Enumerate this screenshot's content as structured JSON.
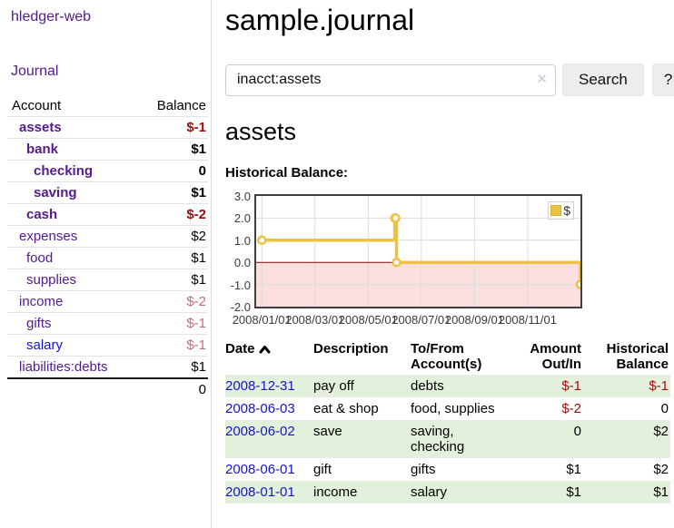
{
  "app": {
    "brand": "hledger-web"
  },
  "colors": {
    "link_purple": "#551a8b",
    "link_blue": "#1414d2",
    "negative_strong": "#9e0b0b",
    "negative_soft": "#c0706f",
    "row_stripe_green": "#e3f0dc",
    "series_gold": "#edc240",
    "zero_line_red": "#8b0000",
    "negative_region_pink": "#fbdede"
  },
  "sidebar": {
    "journal_link": "Journal",
    "table": {
      "account_header": "Account",
      "balance_header": "Balance",
      "rows": [
        {
          "account": "assets",
          "balance": "$-1",
          "depth": 1,
          "emph": true
        },
        {
          "account": "bank",
          "balance": "$1",
          "depth": 2,
          "emph": true
        },
        {
          "account": "checking",
          "balance": "0",
          "depth": 3,
          "emph": true
        },
        {
          "account": "saving",
          "balance": "$1",
          "depth": 3,
          "emph": true
        },
        {
          "account": "cash",
          "balance": "$-2",
          "depth": 2,
          "emph": true
        },
        {
          "account": "expenses",
          "balance": "$2",
          "depth": 1
        },
        {
          "account": "food",
          "balance": "$1",
          "depth": 2
        },
        {
          "account": "supplies",
          "balance": "$1",
          "depth": 2
        },
        {
          "account": "income",
          "balance": "$-2",
          "depth": 1
        },
        {
          "account": "gifts",
          "balance": "$-1",
          "depth": 2
        },
        {
          "account": "salary",
          "balance": "$-1",
          "depth": 2,
          "unvisited": true
        },
        {
          "account": "liabilities:debts",
          "balance": "$1",
          "depth": 1
        }
      ],
      "total": "0"
    }
  },
  "main": {
    "title": "sample.journal",
    "search": {
      "value": "inacct:assets",
      "clear_label": "✕",
      "button_label": "Search",
      "help_label": "?"
    },
    "account_heading": "assets",
    "chart_heading": "Historical Balance:"
  },
  "chart_data": {
    "type": "line",
    "title": "Historical Balance",
    "step": true,
    "series": [
      {
        "name": "$",
        "color": "#edc240",
        "points": [
          [
            "2008-01-01",
            1
          ],
          [
            "2008-06-01",
            2
          ],
          [
            "2008-06-02",
            2
          ],
          [
            "2008-06-03",
            0
          ],
          [
            "2008-12-31",
            -1
          ]
        ]
      }
    ],
    "xlim": [
      "2007-12-25",
      "2008-12-31"
    ],
    "ylim": [
      -2,
      3
    ],
    "x_ticks": [
      "2008/01/01",
      "2008/03/01",
      "2008/05/01",
      "2008/07/01",
      "2008/09/01",
      "2008/11/01"
    ],
    "y_ticks": [
      "3.0",
      "2.0",
      "1.0",
      "0.0",
      "-1.0",
      "-2.0"
    ],
    "grid": true,
    "legend": {
      "label": "$",
      "position": "top-right"
    },
    "zero_line": true,
    "negative_region_shaded": true
  },
  "register": {
    "headers": {
      "date": "Date",
      "description": "Description",
      "accounts": "To/From Account(s)",
      "amount": "Amount Out/In",
      "balance": "Historical Balance"
    },
    "sort": "ascending",
    "rows": [
      {
        "date": "2008-12-31",
        "description": "pay off",
        "accounts": "debts",
        "amount": "$-1",
        "balance": "$-1"
      },
      {
        "date": "2008-06-03",
        "description": "eat & shop",
        "accounts": "food, supplies",
        "amount": "$-2",
        "balance": "0"
      },
      {
        "date": "2008-06-02",
        "description": "save",
        "accounts": "saving, checking",
        "amount": "0",
        "balance": "$2"
      },
      {
        "date": "2008-06-01",
        "description": "gift",
        "accounts": "gifts",
        "amount": "$1",
        "balance": "$2"
      },
      {
        "date": "2008-01-01",
        "description": "income",
        "accounts": "salary",
        "amount": "$1",
        "balance": "$1"
      }
    ]
  }
}
